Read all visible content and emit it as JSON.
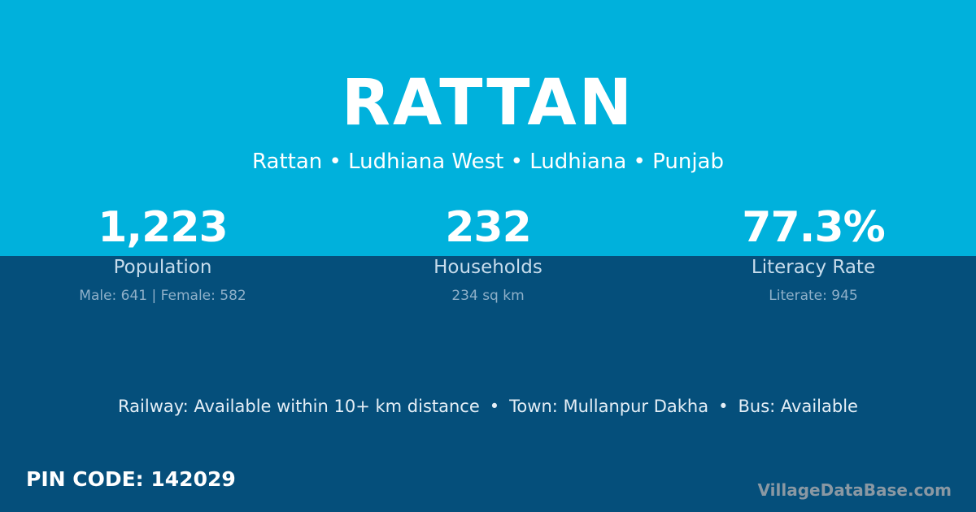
{
  "village": {
    "name": "RATTAN",
    "breadcrumb": "Rattan • Ludhiana West • Ludhiana • Punjab"
  },
  "stats": [
    {
      "value": "1,223",
      "label": "Population",
      "detail": "Male: 641 | Female: 582"
    },
    {
      "value": "232",
      "label": "Households",
      "detail": "234 sq km"
    },
    {
      "value": "77.3%",
      "label": "Literacy Rate",
      "detail": "Literate: 945"
    }
  ],
  "facts": {
    "railway": "Railway: Available within 10+ km distance",
    "town": "Town: Mullanpur Dakha",
    "bus": "Bus: Available",
    "separator": "•"
  },
  "footer": {
    "pin": "PIN CODE: 142029",
    "brand": "VillageDataBase.com"
  },
  "colors": {
    "top": "#00b1dc",
    "bottom": "#054f7b"
  }
}
